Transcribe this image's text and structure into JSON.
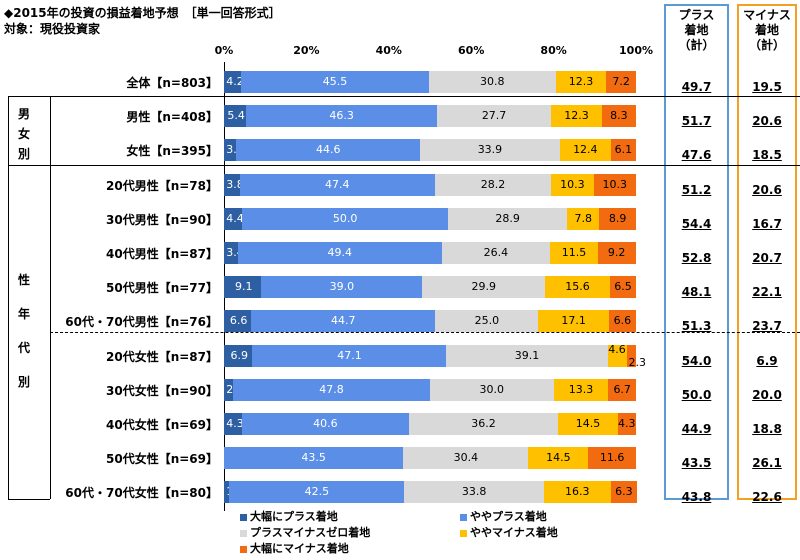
{
  "header": {
    "title": "◆2015年の投資の損益着地予想　［単一回答形式］",
    "subtitle": "対象：現役投資家"
  },
  "columns": {
    "plus_head": "プラス\n着地\n（計）",
    "minus_head": "マイナス\n着地\n（計）"
  },
  "groups": {
    "gender": "男\n女\n別",
    "gender_age": "性\n\n年\n\n代\n\n別"
  },
  "colors": {
    "large_plus": "#2e5fa2",
    "slight_plus": "#5b8ee6",
    "zero": "#d9d9d9",
    "slight_minus": "#ffc000",
    "large_minus": "#f26b10"
  },
  "chart_data": {
    "type": "bar",
    "orientation": "horizontal-stacked-100",
    "x_ticks": [
      "0%",
      "20%",
      "40%",
      "60%",
      "80%",
      "100%"
    ],
    "xlim": [
      0,
      100
    ],
    "legend_position": "bottom",
    "categories": [
      "全体【n=803】",
      "男性【n=408】",
      "女性【n=395】",
      "20代男性【n=78】",
      "30代男性【n=90】",
      "40代男性【n=87】",
      "50代男性【n=77】",
      "60代・70代男性【n=76】",
      "20代女性【n=87】",
      "30代女性【n=90】",
      "40代女性【n=69】",
      "50代女性【n=69】",
      "60代・70代女性【n=80】"
    ],
    "series": [
      {
        "name": "大幅にプラス着地",
        "values": [
          4.2,
          5.4,
          3.0,
          3.8,
          4.4,
          3.4,
          9.1,
          6.6,
          6.9,
          2.2,
          4.3,
          0.0,
          1.3
        ]
      },
      {
        "name": "ややプラス着地",
        "values": [
          45.5,
          46.3,
          44.6,
          47.4,
          50.0,
          49.4,
          39.0,
          44.7,
          47.1,
          47.8,
          40.6,
          43.5,
          42.5
        ]
      },
      {
        "name": "プラスマイナスゼロ着地",
        "values": [
          30.8,
          27.7,
          33.9,
          28.2,
          28.9,
          26.4,
          29.9,
          25.0,
          39.1,
          30.0,
          36.2,
          30.4,
          33.8
        ]
      },
      {
        "name": "ややマイナス着地",
        "values": [
          12.3,
          12.3,
          12.4,
          10.3,
          7.8,
          11.5,
          15.6,
          17.1,
          4.6,
          13.3,
          14.5,
          14.5,
          16.3
        ]
      },
      {
        "name": "大幅にマイナス着地",
        "values": [
          7.2,
          8.3,
          6.1,
          10.3,
          8.9,
          9.2,
          6.5,
          6.6,
          2.3,
          6.7,
          4.3,
          11.6,
          6.3
        ]
      }
    ],
    "plus_total": [
      "49.7",
      "51.7",
      "47.6",
      "51.2",
      "54.4",
      "52.8",
      "48.1",
      "51.3",
      "54.0",
      "50.0",
      "44.9",
      "43.5",
      "43.8"
    ],
    "minus_total": [
      "19.5",
      "20.6",
      "18.5",
      "20.6",
      "16.7",
      "20.7",
      "22.1",
      "23.7",
      "6.9",
      "20.0",
      "18.8",
      "26.1",
      "22.6"
    ]
  }
}
